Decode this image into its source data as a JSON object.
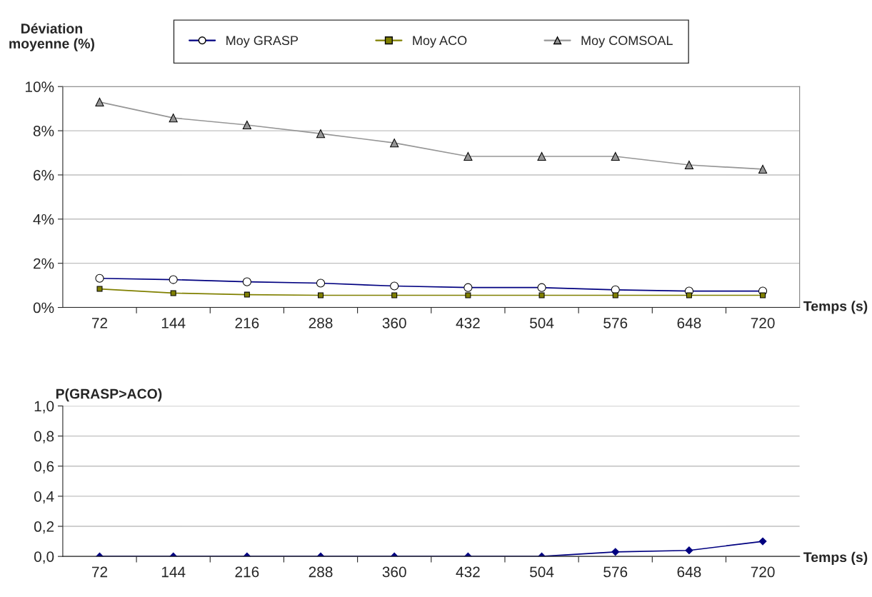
{
  "chart_data": [
    {
      "type": "line",
      "ylabel": "Déviation moyenne (%)",
      "xlabel": "Temps (s)",
      "categories": [
        "72",
        "144",
        "216",
        "288",
        "360",
        "432",
        "504",
        "576",
        "648",
        "720"
      ],
      "series": [
        {
          "name": "Moy GRASP",
          "color": "#000080",
          "marker": "circle",
          "values": [
            1.32,
            1.26,
            1.16,
            1.1,
            0.97,
            0.9,
            0.9,
            0.8,
            0.74,
            0.74
          ]
        },
        {
          "name": "Moy ACO",
          "color": "#808000",
          "marker": "square",
          "values": [
            0.84,
            0.65,
            0.58,
            0.55,
            0.55,
            0.55,
            0.55,
            0.55,
            0.55,
            0.55
          ]
        },
        {
          "name": "Moy COMSOAL",
          "color": "#969696",
          "marker": "triangle",
          "values": [
            9.3,
            8.58,
            8.26,
            7.87,
            7.45,
            6.84,
            6.84,
            6.84,
            6.45,
            6.26
          ]
        }
      ],
      "ylim": [
        0,
        10
      ],
      "yticks": [
        {
          "value": 0,
          "label": "0%"
        },
        {
          "value": 2,
          "label": "2%"
        },
        {
          "value": 4,
          "label": "4%"
        },
        {
          "value": 6,
          "label": "6%"
        },
        {
          "value": 8,
          "label": "8%"
        },
        {
          "value": 10,
          "label": "10%"
        }
      ],
      "grid": "y",
      "legend": "top"
    },
    {
      "type": "line",
      "ylabel": "P(GRASP>ACO)",
      "xlabel": "Temps (s)",
      "categories": [
        "72",
        "144",
        "216",
        "288",
        "360",
        "432",
        "504",
        "576",
        "648",
        "720"
      ],
      "series": [
        {
          "color": "#000080",
          "marker": "diamond",
          "values": [
            0,
            0,
            0,
            0,
            0,
            0,
            0,
            0.03,
            0.04,
            0.1
          ]
        }
      ],
      "ylim": [
        0,
        1
      ],
      "yticks": [
        {
          "value": 0,
          "label": "0,0"
        },
        {
          "value": 0.2,
          "label": "0,2"
        },
        {
          "value": 0.4,
          "label": "0,4"
        },
        {
          "value": 0.6,
          "label": "0,6"
        },
        {
          "value": 0.8,
          "label": "0,8"
        },
        {
          "value": 1,
          "label": "1,0"
        }
      ],
      "grid": "y"
    }
  ]
}
